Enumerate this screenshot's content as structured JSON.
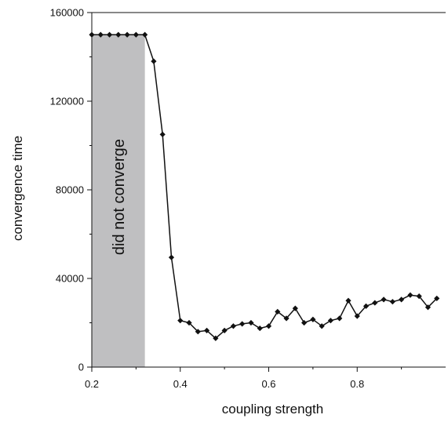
{
  "chart_data": {
    "type": "line",
    "title": "",
    "xlabel": "coupling strength",
    "ylabel": "convergence time",
    "xlim": [
      0.2,
      1.0
    ],
    "ylim": [
      0,
      160000
    ],
    "x_ticks": [
      0.2,
      0.4,
      0.6,
      0.8
    ],
    "x_tick_labels": [
      "0.2",
      "0.4",
      "0.6",
      "0.8"
    ],
    "y_ticks": [
      0,
      40000,
      80000,
      120000,
      160000
    ],
    "y_tick_labels": [
      "0",
      "40000",
      "80000",
      "120000",
      "160000"
    ],
    "grid": false,
    "shaded_region": {
      "x_start": 0.2,
      "x_end": 0.32,
      "label": "did not converge",
      "color": "#bfbfc1"
    },
    "series": [
      {
        "color": "#111111",
        "marker": "diamond",
        "x": [
          0.2,
          0.22,
          0.24,
          0.26,
          0.28,
          0.3,
          0.32,
          0.34,
          0.36,
          0.38,
          0.4,
          0.42,
          0.44,
          0.46,
          0.48,
          0.5,
          0.52,
          0.54,
          0.56,
          0.58,
          0.6,
          0.62,
          0.64,
          0.66,
          0.68,
          0.7,
          0.72,
          0.74,
          0.76,
          0.78,
          0.8,
          0.82,
          0.84,
          0.86,
          0.88,
          0.9,
          0.92,
          0.94,
          0.96,
          0.98
        ],
        "y": [
          150000,
          150000,
          150000,
          150000,
          150000,
          150000,
          150000,
          138000,
          105000,
          49500,
          21000,
          20000,
          16000,
          16500,
          13000,
          16500,
          18500,
          19500,
          20000,
          17500,
          18500,
          25000,
          22000,
          26500,
          20000,
          21500,
          18500,
          21000,
          22000,
          30000,
          23000,
          27500,
          29000,
          30500,
          29500,
          30500,
          32500,
          32000,
          27000,
          31000
        ]
      }
    ]
  }
}
